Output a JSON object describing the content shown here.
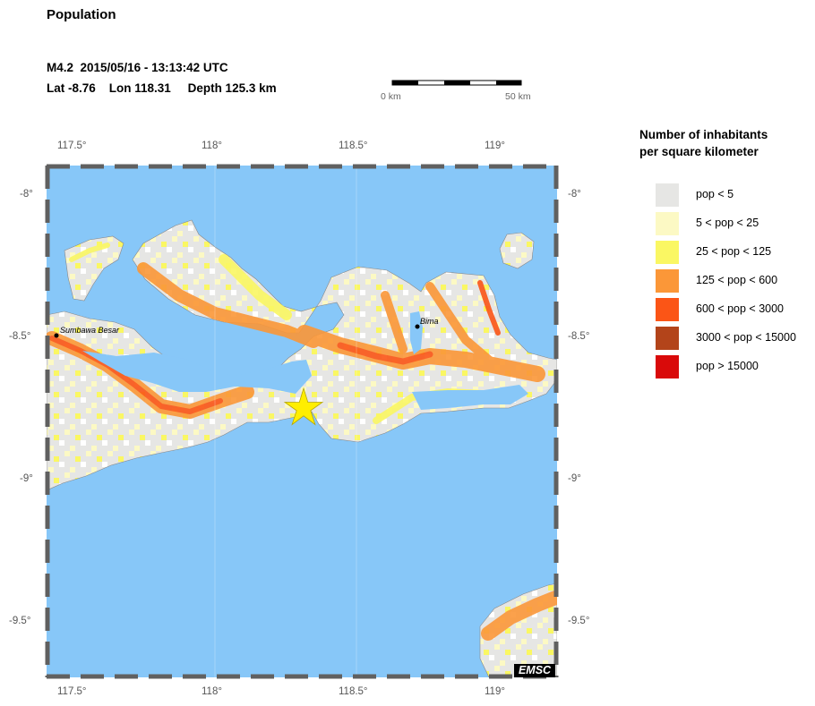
{
  "header": {
    "title": "Population",
    "line1": "M4.2  2015/05/16 - 13:13:42 UTC",
    "line2": "Lat -8.76    Lon 118.31     Depth 125.3 km"
  },
  "scale_bar": {
    "start_label": "0 km",
    "end_label": "50 km"
  },
  "axes": {
    "lon_labels": [
      "117.5°",
      "118°",
      "118.5°",
      "119°"
    ],
    "lat_labels": [
      "-8°",
      "-8.5°",
      "-9°",
      "-9.5°"
    ]
  },
  "places": [
    {
      "name": "Sumbawa Besar"
    },
    {
      "name": "Bima"
    }
  ],
  "epicenter": {
    "lat": -8.76,
    "lon": 118.31,
    "marker": "star-icon"
  },
  "legend": {
    "title_line1": "Number of inhabitants",
    "title_line2": "per square kilometer",
    "items": [
      {
        "label": "pop < 5",
        "color": "#e6e6e4"
      },
      {
        "label": "5 < pop < 25",
        "color": "#fcf9c4"
      },
      {
        "label": "25 < pop < 125",
        "color": "#faf763"
      },
      {
        "label": "125 < pop < 600",
        "color": "#fb9738"
      },
      {
        "label": "600 < pop < 3000",
        "color": "#fb5516"
      },
      {
        "label": "3000 < pop < 15000",
        "color": "#b3441a"
      },
      {
        "label": "pop > 15000",
        "color": "#d90a0a"
      }
    ]
  },
  "colors": {
    "sea": "#87c7f8",
    "land": "#ffffff",
    "frame": "#606060"
  },
  "watermark": "EMSC"
}
